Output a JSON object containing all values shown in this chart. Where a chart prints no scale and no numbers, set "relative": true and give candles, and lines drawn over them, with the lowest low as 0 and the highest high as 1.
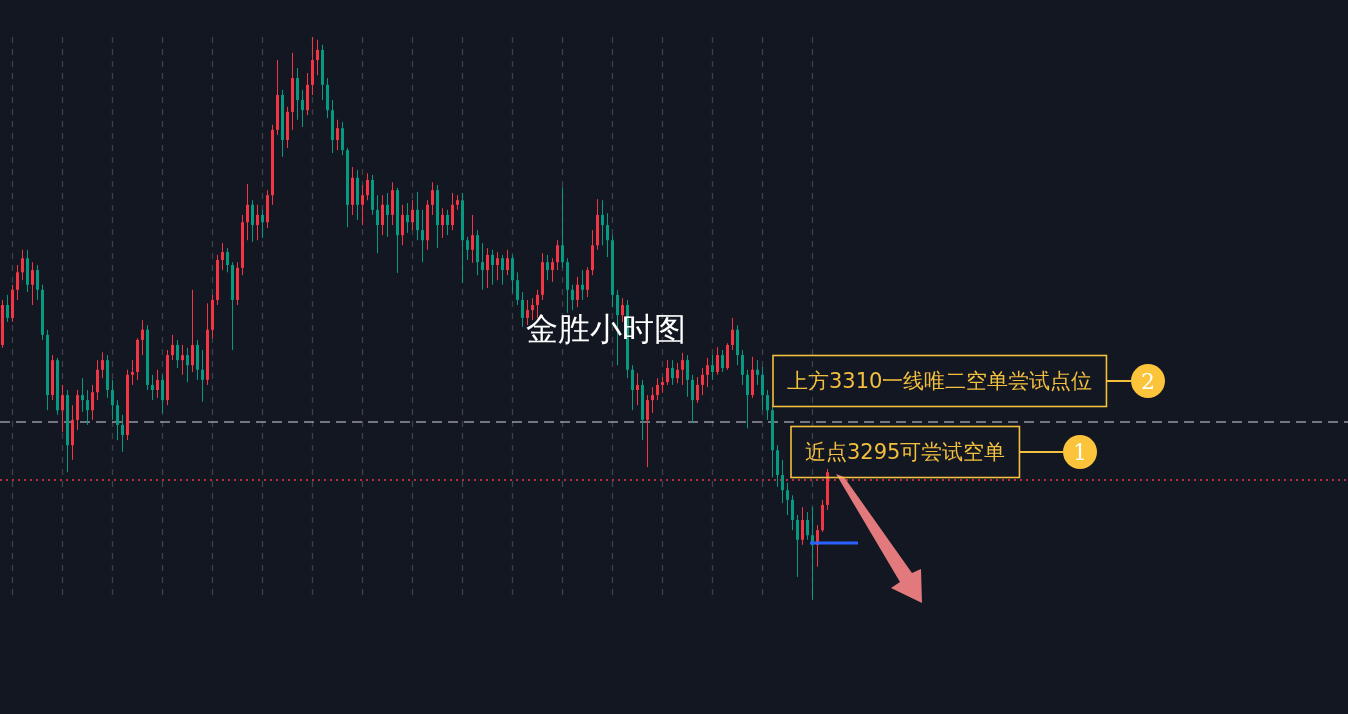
{
  "chart_data": {
    "type": "candlestick",
    "title": "金胜小时图",
    "relative": true,
    "grid": "x",
    "annotations": [
      "上方3310一线唯二空单尝试点位",
      "2",
      "近点3295可尝试空单",
      "1"
    ],
    "ref_lines": [
      {
        "axis": "y",
        "value": 0.316,
        "color": "#9598a1",
        "line_style": "dashed"
      },
      {
        "axis": "y",
        "value": 0.213,
        "color": "#f23645",
        "line_style": "dotted"
      }
    ],
    "categories": [
      null,
      null,
      null,
      null,
      null,
      null,
      null,
      null,
      null,
      null,
      null,
      null,
      null,
      null,
      null,
      null,
      null,
      null,
      null,
      null,
      null,
      null,
      null,
      null,
      null,
      null,
      null,
      null,
      null,
      null,
      null,
      null,
      null,
      null,
      null,
      null,
      null,
      null,
      null,
      null,
      null,
      null,
      null,
      null,
      null,
      null,
      null,
      null,
      null,
      null,
      null,
      null,
      null,
      null,
      null,
      null,
      null,
      null,
      null,
      null,
      null,
      null,
      null,
      null,
      null,
      null,
      null,
      null,
      null,
      null,
      null,
      null,
      null,
      null,
      null,
      null,
      null,
      null,
      null,
      null,
      null,
      null,
      null,
      null,
      null,
      null,
      null,
      null,
      null,
      null,
      null,
      null,
      null,
      null,
      null,
      null,
      null,
      null,
      null,
      null,
      null,
      null,
      null,
      null,
      null,
      null,
      null,
      null,
      null,
      null,
      null,
      null,
      null,
      null,
      null,
      null,
      null,
      null,
      null,
      null,
      null,
      null,
      null,
      null,
      null,
      null,
      null,
      null,
      null,
      null,
      null,
      null,
      null,
      null,
      null,
      null,
      null,
      null,
      null,
      null,
      null,
      null,
      null,
      null,
      null,
      null,
      null,
      null,
      null,
      null,
      null,
      null,
      null,
      null,
      null,
      null,
      null,
      null,
      null,
      null,
      null,
      null,
      null,
      null,
      null,
      null
    ],
    "ohlc": [
      [
        0.453,
        0.533,
        0.448,
        0.524
      ],
      [
        0.524,
        0.542,
        0.494,
        0.501
      ],
      [
        0.501,
        0.56,
        0.494,
        0.551
      ],
      [
        0.551,
        0.595,
        0.533,
        0.582
      ],
      [
        0.582,
        0.622,
        0.568,
        0.607
      ],
      [
        0.607,
        0.622,
        0.547,
        0.56
      ],
      [
        0.56,
        0.6,
        0.524,
        0.586
      ],
      [
        0.586,
        0.595,
        0.533,
        0.551
      ],
      [
        0.551,
        0.56,
        0.462,
        0.471
      ],
      [
        0.471,
        0.48,
        0.337,
        0.364
      ],
      [
        0.364,
        0.435,
        0.355,
        0.426
      ],
      [
        0.426,
        0.43,
        0.329,
        0.337
      ],
      [
        0.337,
        0.382,
        0.298,
        0.364
      ],
      [
        0.364,
        0.373,
        0.227,
        0.275
      ],
      [
        0.275,
        0.346,
        0.249,
        0.32
      ],
      [
        0.32,
        0.373,
        0.302,
        0.364
      ],
      [
        0.364,
        0.394,
        0.334,
        0.355
      ],
      [
        0.355,
        0.373,
        0.311,
        0.337
      ],
      [
        0.337,
        0.382,
        0.32,
        0.369
      ],
      [
        0.369,
        0.426,
        0.355,
        0.409
      ],
      [
        0.409,
        0.44,
        0.394,
        0.426
      ],
      [
        0.426,
        0.435,
        0.359,
        0.373
      ],
      [
        0.373,
        0.391,
        0.32,
        0.346
      ],
      [
        0.346,
        0.355,
        0.284,
        0.311
      ],
      [
        0.311,
        0.329,
        0.263,
        0.293
      ],
      [
        0.293,
        0.409,
        0.284,
        0.4
      ],
      [
        0.4,
        0.426,
        0.382,
        0.405
      ],
      [
        0.405,
        0.465,
        0.391,
        0.462
      ],
      [
        0.462,
        0.497,
        0.435,
        0.48
      ],
      [
        0.48,
        0.488,
        0.373,
        0.382
      ],
      [
        0.382,
        0.4,
        0.355,
        0.373
      ],
      [
        0.373,
        0.409,
        0.359,
        0.391
      ],
      [
        0.391,
        0.4,
        0.332,
        0.355
      ],
      [
        0.355,
        0.444,
        0.346,
        0.435
      ],
      [
        0.435,
        0.471,
        0.426,
        0.453
      ],
      [
        0.453,
        0.462,
        0.412,
        0.426
      ],
      [
        0.426,
        0.453,
        0.4,
        0.435
      ],
      [
        0.435,
        0.448,
        0.387,
        0.417
      ],
      [
        0.417,
        0.551,
        0.405,
        0.453
      ],
      [
        0.453,
        0.462,
        0.391,
        0.409
      ],
      [
        0.409,
        0.444,
        0.352,
        0.391
      ],
      [
        0.391,
        0.527,
        0.382,
        0.48
      ],
      [
        0.48,
        0.542,
        0.465,
        0.533
      ],
      [
        0.533,
        0.613,
        0.524,
        0.604
      ],
      [
        0.604,
        0.634,
        0.586,
        0.618
      ],
      [
        0.618,
        0.625,
        0.582,
        0.595
      ],
      [
        0.595,
        0.6,
        0.444,
        0.533
      ],
      [
        0.533,
        0.6,
        0.524,
        0.59
      ],
      [
        0.59,
        0.684,
        0.577,
        0.671
      ],
      [
        0.671,
        0.739,
        0.639,
        0.702
      ],
      [
        0.702,
        0.71,
        0.636,
        0.666
      ],
      [
        0.666,
        0.702,
        0.639,
        0.684
      ],
      [
        0.684,
        0.693,
        0.643,
        0.671
      ],
      [
        0.671,
        0.728,
        0.661,
        0.719
      ],
      [
        0.719,
        0.844,
        0.702,
        0.835
      ],
      [
        0.835,
        0.959,
        0.826,
        0.897
      ],
      [
        0.897,
        0.906,
        0.787,
        0.817
      ],
      [
        0.817,
        0.876,
        0.803,
        0.867
      ],
      [
        0.867,
        0.972,
        0.835,
        0.927
      ],
      [
        0.927,
        0.945,
        0.853,
        0.888
      ],
      [
        0.888,
        0.906,
        0.84,
        0.87
      ],
      [
        0.87,
        0.936,
        0.861,
        0.915
      ],
      [
        0.915,
        1,
        0.897,
        0.959
      ],
      [
        0.959,
        0.995,
        0.932,
        0.977
      ],
      [
        0.977,
        0.986,
        0.888,
        0.915
      ],
      [
        0.915,
        0.927,
        0.856,
        0.87
      ],
      [
        0.87,
        0.888,
        0.794,
        0.817
      ],
      [
        0.817,
        0.853,
        0.799,
        0.838
      ],
      [
        0.838,
        0.849,
        0.79,
        0.799
      ],
      [
        0.799,
        0.803,
        0.662,
        0.702
      ],
      [
        0.702,
        0.769,
        0.684,
        0.75
      ],
      [
        0.75,
        0.764,
        0.675,
        0.702
      ],
      [
        0.702,
        0.737,
        0.666,
        0.719
      ],
      [
        0.719,
        0.758,
        0.71,
        0.746
      ],
      [
        0.746,
        0.755,
        0.684,
        0.693
      ],
      [
        0.693,
        0.719,
        0.616,
        0.666
      ],
      [
        0.666,
        0.719,
        0.648,
        0.702
      ],
      [
        0.702,
        0.723,
        0.645,
        0.684
      ],
      [
        0.684,
        0.742,
        0.666,
        0.728
      ],
      [
        0.728,
        0.732,
        0.581,
        0.648
      ],
      [
        0.648,
        0.702,
        0.63,
        0.684
      ],
      [
        0.684,
        0.705,
        0.652,
        0.671
      ],
      [
        0.671,
        0.71,
        0.657,
        0.693
      ],
      [
        0.693,
        0.725,
        0.639,
        0.657
      ],
      [
        0.657,
        0.693,
        0.6,
        0.639
      ],
      [
        0.639,
        0.71,
        0.622,
        0.702
      ],
      [
        0.702,
        0.742,
        0.684,
        0.728
      ],
      [
        0.728,
        0.737,
        0.625,
        0.666
      ],
      [
        0.666,
        0.696,
        0.643,
        0.684
      ],
      [
        0.684,
        0.693,
        0.648,
        0.666
      ],
      [
        0.666,
        0.723,
        0.657,
        0.702
      ],
      [
        0.702,
        0.719,
        0.693,
        0.71
      ],
      [
        0.71,
        0.723,
        0.563,
        0.639
      ],
      [
        0.639,
        0.645,
        0.604,
        0.622
      ],
      [
        0.622,
        0.684,
        0.599,
        0.648
      ],
      [
        0.648,
        0.657,
        0.577,
        0.6
      ],
      [
        0.6,
        0.634,
        0.551,
        0.586
      ],
      [
        0.586,
        0.625,
        0.554,
        0.613
      ],
      [
        0.613,
        0.622,
        0.56,
        0.595
      ],
      [
        0.595,
        0.618,
        0.568,
        0.607
      ],
      [
        0.607,
        0.613,
        0.56,
        0.586
      ],
      [
        0.586,
        0.622,
        0.577,
        0.607
      ],
      [
        0.607,
        0.613,
        0.545,
        0.568
      ],
      [
        0.568,
        0.582,
        0.524,
        0.533
      ],
      [
        0.533,
        0.547,
        0.485,
        0.501
      ],
      [
        0.501,
        0.533,
        0.488,
        0.515
      ],
      [
        0.515,
        0.536,
        0.497,
        0.524
      ],
      [
        0.524,
        0.551,
        0.501,
        0.542
      ],
      [
        0.542,
        0.616,
        0.533,
        0.6
      ],
      [
        0.6,
        0.613,
        0.568,
        0.586
      ],
      [
        0.586,
        0.607,
        0.565,
        0.6
      ],
      [
        0.6,
        0.639,
        0.586,
        0.63
      ],
      [
        0.63,
        0.733,
        0.59,
        0.6
      ],
      [
        0.6,
        0.607,
        0.51,
        0.551
      ],
      [
        0.551,
        0.56,
        0.515,
        0.533
      ],
      [
        0.533,
        0.574,
        0.52,
        0.56
      ],
      [
        0.56,
        0.586,
        0.533,
        0.551
      ],
      [
        0.551,
        0.591,
        0.538,
        0.586
      ],
      [
        0.586,
        0.657,
        0.577,
        0.63
      ],
      [
        0.63,
        0.712,
        0.622,
        0.684
      ],
      [
        0.684,
        0.71,
        0.63,
        0.666
      ],
      [
        0.666,
        0.687,
        0.609,
        0.639
      ],
      [
        0.639,
        0.648,
        0.52,
        0.542
      ],
      [
        0.542,
        0.551,
        0.417,
        0.506
      ],
      [
        0.506,
        0.536,
        0.494,
        0.524
      ],
      [
        0.524,
        0.533,
        0.394,
        0.409
      ],
      [
        0.409,
        0.417,
        0.337,
        0.373
      ],
      [
        0.373,
        0.403,
        0.346,
        0.382
      ],
      [
        0.382,
        0.391,
        0.284,
        0.32
      ],
      [
        0.32,
        0.364,
        0.236,
        0.355
      ],
      [
        0.355,
        0.378,
        0.332,
        0.364
      ],
      [
        0.364,
        0.394,
        0.355,
        0.382
      ],
      [
        0.382,
        0.396,
        0.368,
        0.387
      ],
      [
        0.387,
        0.426,
        0.382,
        0.412
      ],
      [
        0.412,
        0.426,
        0.382,
        0.394
      ],
      [
        0.394,
        0.421,
        0.385,
        0.409
      ],
      [
        0.409,
        0.439,
        0.382,
        0.426
      ],
      [
        0.426,
        0.435,
        0.361,
        0.391
      ],
      [
        0.391,
        0.4,
        0.314,
        0.355
      ],
      [
        0.355,
        0.396,
        0.35,
        0.382
      ],
      [
        0.382,
        0.412,
        0.364,
        0.4
      ],
      [
        0.4,
        0.43,
        0.378,
        0.417
      ],
      [
        0.417,
        0.435,
        0.391,
        0.405
      ],
      [
        0.405,
        0.449,
        0.4,
        0.435
      ],
      [
        0.435,
        0.444,
        0.405,
        0.412
      ],
      [
        0.412,
        0.456,
        0.409,
        0.453
      ],
      [
        0.453,
        0.501,
        0.444,
        0.48
      ],
      [
        0.48,
        0.488,
        0.417,
        0.435
      ],
      [
        0.435,
        0.444,
        0.382,
        0.4
      ],
      [
        0.4,
        0.409,
        0.305,
        0.364
      ],
      [
        0.364,
        0.432,
        0.359,
        0.409
      ],
      [
        0.409,
        0.426,
        0.382,
        0.4
      ],
      [
        0.4,
        0.414,
        0.337,
        0.364
      ],
      [
        0.364,
        0.373,
        0.32,
        0.337
      ],
      [
        0.337,
        0.346,
        0.218,
        0.266
      ],
      [
        0.266,
        0.275,
        0.201,
        0.222
      ],
      [
        0.222,
        0.249,
        0.172,
        0.195
      ],
      [
        0.195,
        0.208,
        0.151,
        0.178
      ],
      [
        0.178,
        0.186,
        0.124,
        0.142
      ],
      [
        0.142,
        0.151,
        0.041,
        0.107
      ],
      [
        0.107,
        0.165,
        0.098,
        0.142
      ],
      [
        0.142,
        0.156,
        0.107,
        0.115
      ],
      [
        0.115,
        0.165,
        0,
        0.098
      ],
      [
        0.098,
        0.133,
        0.059,
        0.124
      ],
      [
        0.124,
        0.178,
        0.121,
        0.169
      ],
      [
        0.169,
        0.233,
        0.16,
        0.227
      ]
    ],
    "colors": [
      "#f23645",
      "#089981",
      "#f23645",
      "#f23645",
      "#f23645",
      "#089981",
      "#f23645",
      "#089981",
      "#089981",
      "#089981",
      "#f23645",
      "#089981",
      "#f23645",
      "#089981",
      "#f23645",
      "#f23645",
      "#089981",
      "#089981",
      "#f23645",
      "#f23645",
      "#f23645",
      "#089981",
      "#089981",
      "#089981",
      "#089981",
      "#f23645",
      "#f23645",
      "#f23645",
      "#f23645",
      "#089981",
      "#089981",
      "#f23645",
      "#089981",
      "#f23645",
      "#f23645",
      "#089981",
      "#f23645",
      "#089981",
      "#f23645",
      "#089981",
      "#089981",
      "#f23645",
      "#f23645",
      "#f23645",
      "#f23645",
      "#089981",
      "#089981",
      "#f23645",
      "#f23645",
      "#f23645",
      "#089981",
      "#f23645",
      "#089981",
      "#f23645",
      "#f23645",
      "#f23645",
      "#089981",
      "#f23645",
      "#f23645",
      "#089981",
      "#089981",
      "#f23645",
      "#f23645",
      "#f23645",
      "#089981",
      "#089981",
      "#089981",
      "#f23645",
      "#089981",
      "#089981",
      "#f23645",
      "#089981",
      "#f23645",
      "#f23645",
      "#089981",
      "#089981",
      "#f23645",
      "#089981",
      "#f23645",
      "#089981",
      "#f23645",
      "#089981",
      "#f23645",
      "#089981",
      "#089981",
      "#f23645",
      "#f23645",
      "#089981",
      "#f23645",
      "#089981",
      "#f23645",
      "#f23645",
      "#089981",
      "#089981",
      "#f23645",
      "#089981",
      "#089981",
      "#f23645",
      "#089981",
      "#f23645",
      "#089981",
      "#f23645",
      "#089981",
      "#089981",
      "#089981",
      "#f23645",
      "#f23645",
      "#f23645",
      "#f23645",
      "#089981",
      "#f23645",
      "#f23645",
      "#089981",
      "#089981",
      "#089981",
      "#f23645",
      "#089981",
      "#f23645",
      "#f23645",
      "#f23645",
      "#089981",
      "#089981",
      "#089981",
      "#089981",
      "#f23645",
      "#089981",
      "#089981",
      "#f23645",
      "#089981",
      "#f23645",
      "#f23645",
      "#f23645",
      "#f23645",
      "#f23645",
      "#089981",
      "#f23645",
      "#f23645",
      "#089981",
      "#089981",
      "#f23645",
      "#f23645",
      "#f23645",
      "#089981",
      "#f23645",
      "#089981",
      "#f23645",
      "#f23645",
      "#089981",
      "#089981",
      "#089981",
      "#f23645",
      "#089981",
      "#089981",
      "#089981",
      "#089981",
      "#089981",
      "#089981",
      "#089981",
      "#089981",
      "#089981",
      "#f23645",
      "#089981",
      "#089981",
      "#f23645",
      "#f23645",
      "#f23645"
    ]
  }
}
